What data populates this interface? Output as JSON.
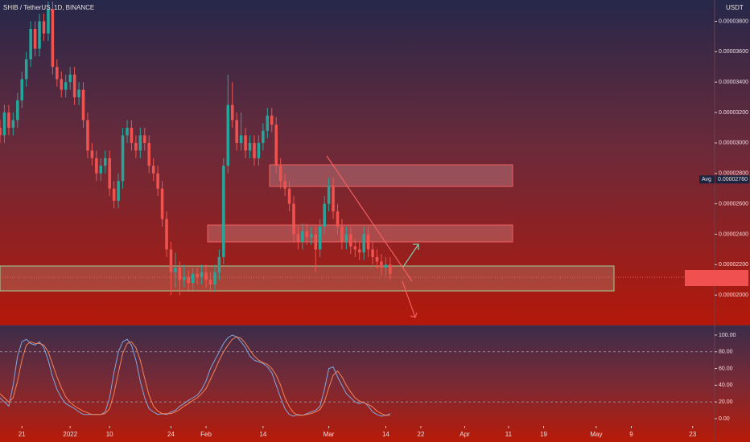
{
  "header": {
    "title": "SHIB / TetherUS, 1D, BINANCE",
    "currency": "USDT"
  },
  "chart_data": [
    {
      "type": "candlestick",
      "x": [
        -5,
        -4,
        -3,
        -2,
        -1,
        0,
        1,
        2,
        3,
        4,
        5,
        6,
        7,
        8,
        9,
        10,
        11,
        12,
        13,
        14,
        15,
        16,
        17,
        18,
        19,
        20,
        21,
        22,
        23,
        24,
        25,
        26,
        27,
        28,
        29,
        30,
        31,
        32,
        33,
        34,
        35,
        36,
        37,
        38,
        39,
        40,
        41,
        42,
        43,
        44,
        45,
        46,
        47,
        48,
        49,
        50,
        51,
        52,
        53,
        54,
        55,
        56,
        57,
        58,
        59,
        60,
        61,
        62,
        63,
        64,
        65,
        66,
        67,
        68,
        69,
        70,
        71,
        72,
        73,
        74,
        75,
        76,
        77,
        78,
        79,
        80,
        81,
        82,
        83,
        84
      ],
      "open": [
        3.1e-05,
        3.05e-05,
        3.2e-05,
        3.1e-05,
        3.15e-05,
        3.28e-05,
        3.42e-05,
        3.55e-05,
        3.75e-05,
        3.62e-05,
        3.8e-05,
        3.72e-05,
        3.88e-05,
        3.5e-05,
        3.42e-05,
        3.35e-05,
        3.4e-05,
        3.45e-05,
        3.3e-05,
        3.35e-05,
        3.15e-05,
        2.95e-05,
        2.9e-05,
        2.8e-05,
        2.85e-05,
        2.9e-05,
        2.7e-05,
        2.62e-05,
        2.75e-05,
        3.05e-05,
        3.1e-05,
        3e-05,
        2.95e-05,
        3.05e-05,
        3e-05,
        2.85e-05,
        2.8e-05,
        2.7e-05,
        2.5e-05,
        2.3e-05,
        2.15e-05,
        2.18e-05,
        2.1e-05,
        2.12e-05,
        2.08e-05,
        2.14e-05,
        2.12e-05,
        2.15e-05,
        2.1e-05,
        2.07e-05,
        2.15e-05,
        2.25e-05,
        2.85e-05,
        3.25e-05,
        3.15e-05,
        3e-05,
        3.05e-05,
        2.95e-05,
        3e-05,
        2.9e-05,
        3e-05,
        3.08e-05,
        3.18e-05,
        3.12e-05,
        2.85e-05,
        2.75e-05,
        2.7e-05,
        2.6e-05,
        2.4e-05,
        2.35e-05,
        2.42e-05,
        2.38e-05,
        2.4e-05,
        2.3e-05,
        2.45e-05,
        2.6e-05,
        2.72e-05,
        2.55e-05,
        2.45e-05,
        2.35e-05,
        2.4e-05,
        2.32e-05,
        2.3e-05,
        2.28e-05,
        2.4e-05,
        2.3e-05,
        2.25e-05,
        2.22e-05,
        2.18e-05,
        2.2e-05
      ],
      "high": [
        3.15e-05,
        3.25e-05,
        3.25e-05,
        3.2e-05,
        3.33e-05,
        3.47e-05,
        3.6e-05,
        3.8e-05,
        3.8e-05,
        3.85e-05,
        3.85e-05,
        3.93e-05,
        3.93e-05,
        3.55e-05,
        3.47e-05,
        3.45e-05,
        3.5e-05,
        3.5e-05,
        3.4e-05,
        3.4e-05,
        3.2e-05,
        3e-05,
        2.95e-05,
        2.9e-05,
        2.95e-05,
        2.95e-05,
        2.75e-05,
        2.8e-05,
        3.1e-05,
        3.15e-05,
        3.15e-05,
        3.05e-05,
        3.1e-05,
        3.1e-05,
        3.05e-05,
        2.9e-05,
        2.85e-05,
        2.75e-05,
        2.55e-05,
        2.35e-05,
        2.28e-05,
        2.22e-05,
        2.2e-05,
        2.16e-05,
        2.18e-05,
        2.18e-05,
        2.2e-05,
        2.2e-05,
        2.15e-05,
        2.2e-05,
        2.3e-05,
        2.9e-05,
        3.45e-05,
        3.4e-05,
        3.2e-05,
        3.2e-05,
        3.1e-05,
        3.05e-05,
        3.05e-05,
        3.05e-05,
        3.13e-05,
        3.23e-05,
        3.23e-05,
        3.17e-05,
        2.9e-05,
        2.8e-05,
        2.75e-05,
        2.65e-05,
        2.45e-05,
        2.47e-05,
        2.47e-05,
        2.45e-05,
        2.45e-05,
        2.5e-05,
        2.65e-05,
        2.77e-05,
        2.77e-05,
        2.6e-05,
        2.5e-05,
        2.45e-05,
        2.45e-05,
        2.37e-05,
        2.35e-05,
        2.45e-05,
        2.45e-05,
        2.35e-05,
        2.3e-05,
        2.27e-05,
        2.25e-05,
        2.25e-05
      ],
      "low": [
        3e-05,
        3e-05,
        3.05e-05,
        3.05e-05,
        3.1e-05,
        3.23e-05,
        3.37e-05,
        3.5e-05,
        3.57e-05,
        3.57e-05,
        3.67e-05,
        3.67e-05,
        3.45e-05,
        3.37e-05,
        3.3e-05,
        3.3e-05,
        3.35e-05,
        3.25e-05,
        3.25e-05,
        3.1e-05,
        2.9e-05,
        2.85e-05,
        2.75e-05,
        2.75e-05,
        2.8e-05,
        2.65e-05,
        2.57e-05,
        2.57e-05,
        2.7e-05,
        3e-05,
        2.95e-05,
        2.9e-05,
        2.9e-05,
        2.95e-05,
        2.8e-05,
        2.75e-05,
        2.65e-05,
        2.45e-05,
        2.25e-05,
        2e-05,
        2.05e-05,
        2e-05,
        2.05e-05,
        2.03e-05,
        2.03e-05,
        2.07e-05,
        2.07e-05,
        2.05e-05,
        2.02e-05,
        2.02e-05,
        2.1e-05,
        2.2e-05,
        2.8e-05,
        3.1e-05,
        2.95e-05,
        2.95e-05,
        2.9e-05,
        2.9e-05,
        2.85e-05,
        2.85e-05,
        2.95e-05,
        3.03e-05,
        3.07e-05,
        2.8e-05,
        2.7e-05,
        2.65e-05,
        2.55e-05,
        2.35e-05,
        2.3e-05,
        2.3e-05,
        2.33e-05,
        2.33e-05,
        2.15e-05,
        2.25e-05,
        2.4e-05,
        2.55e-05,
        2.5e-05,
        2.4e-05,
        2.3e-05,
        2.3e-05,
        2.27e-05,
        2.25e-05,
        2.23e-05,
        2.23e-05,
        2.25e-05,
        2.2e-05,
        2.17e-05,
        2.13e-05,
        2.13e-05,
        2.1e-05
      ],
      "close": [
        3.05e-05,
        3.2e-05,
        3.1e-05,
        3.15e-05,
        3.28e-05,
        3.42e-05,
        3.55e-05,
        3.75e-05,
        3.62e-05,
        3.8e-05,
        3.72e-05,
        3.88e-05,
        3.5e-05,
        3.42e-05,
        3.35e-05,
        3.4e-05,
        3.45e-05,
        3.3e-05,
        3.35e-05,
        3.15e-05,
        2.95e-05,
        2.9e-05,
        2.8e-05,
        2.85e-05,
        2.9e-05,
        2.7e-05,
        2.62e-05,
        2.75e-05,
        3.05e-05,
        3.1e-05,
        3e-05,
        2.95e-05,
        3.05e-05,
        3e-05,
        2.85e-05,
        2.8e-05,
        2.7e-05,
        2.5e-05,
        2.3e-05,
        2.15e-05,
        2.18e-05,
        2.1e-05,
        2.12e-05,
        2.08e-05,
        2.14e-05,
        2.12e-05,
        2.15e-05,
        2.1e-05,
        2.07e-05,
        2.15e-05,
        2.25e-05,
        2.85e-05,
        3.25e-05,
        3.15e-05,
        3e-05,
        3.05e-05,
        2.95e-05,
        3e-05,
        2.9e-05,
        3e-05,
        3.08e-05,
        3.18e-05,
        3.12e-05,
        2.85e-05,
        2.75e-05,
        2.7e-05,
        2.6e-05,
        2.4e-05,
        2.35e-05,
        2.42e-05,
        2.38e-05,
        2.4e-05,
        2.3e-05,
        2.45e-05,
        2.6e-05,
        2.72e-05,
        2.55e-05,
        2.45e-05,
        2.35e-05,
        2.4e-05,
        2.32e-05,
        2.3e-05,
        2.28e-05,
        2.4e-05,
        2.3e-05,
        2.25e-05,
        2.22e-05,
        2.18e-05,
        2.2e-05,
        2.14e-05
      ],
      "up_color": "#26a69a",
      "down_color": "#ef5350",
      "xlim": [
        -5,
        158
      ],
      "ylim": [
        1.8e-05,
        3.94e-05
      ],
      "yticks": [
        {
          "value": 2e-05,
          "label": "0.00002000"
        },
        {
          "value": 2.2e-05,
          "label": "0.00002200"
        },
        {
          "value": 2.4e-05,
          "label": "0.00002400"
        },
        {
          "value": 2.6e-05,
          "label": "0.00002600"
        },
        {
          "value": 2.8e-05,
          "label": "0.00002800"
        },
        {
          "value": 3e-05,
          "label": "0.00003000"
        },
        {
          "value": 3.2e-05,
          "label": "0.00003200"
        },
        {
          "value": 3.4e-05,
          "label": "0.00003400"
        },
        {
          "value": 3.6e-05,
          "label": "0.00003600"
        },
        {
          "value": 3.8e-05,
          "label": "0.00003800"
        }
      ],
      "avg": {
        "name": "Avg",
        "value": 2.76e-05,
        "label": "0.00002760"
      }
    },
    {
      "type": "line",
      "x": [
        -5,
        -4,
        -3,
        -2,
        -1,
        0,
        1,
        2,
        3,
        4,
        5,
        6,
        7,
        8,
        9,
        10,
        11,
        12,
        13,
        14,
        15,
        16,
        17,
        18,
        19,
        20,
        21,
        22,
        23,
        24,
        25,
        26,
        27,
        28,
        29,
        30,
        31,
        32,
        33,
        34,
        35,
        36,
        37,
        38,
        39,
        40,
        41,
        42,
        43,
        44,
        45,
        46,
        47,
        48,
        49,
        50,
        51,
        52,
        53,
        54,
        55,
        56,
        57,
        58,
        59,
        60,
        61,
        62,
        63,
        64,
        65,
        66,
        67,
        68,
        69,
        70,
        71,
        72,
        73,
        74,
        75,
        76,
        77,
        78,
        79,
        80,
        81,
        82,
        83,
        84
      ],
      "series": [
        {
          "color": "#7fa7e0",
          "values": [
            25,
            20,
            15,
            40,
            75,
            92,
            95,
            90,
            88,
            92,
            85,
            70,
            50,
            35,
            25,
            18,
            15,
            12,
            8,
            5,
            5,
            5,
            5,
            5,
            8,
            25,
            55,
            80,
            92,
            95,
            88,
            70,
            45,
            25,
            12,
            8,
            5,
            6,
            5,
            8,
            10,
            15,
            18,
            22,
            25,
            28,
            35,
            45,
            60,
            70,
            80,
            90,
            97,
            100,
            98,
            92,
            85,
            75,
            70,
            68,
            66,
            62,
            55,
            40,
            25,
            12,
            5,
            3,
            5,
            4,
            6,
            8,
            10,
            15,
            35,
            60,
            62,
            50,
            40,
            30,
            25,
            20,
            18,
            20,
            15,
            8,
            5,
            3,
            4,
            6
          ]
        },
        {
          "color": "#f0845a",
          "values": [
            30,
            25,
            20,
            25,
            45,
            70,
            88,
            92,
            90,
            90,
            88,
            80,
            65,
            50,
            37,
            26,
            20,
            15,
            12,
            9,
            7,
            5,
            5,
            5,
            6,
            12,
            30,
            55,
            78,
            90,
            92,
            85,
            70,
            48,
            28,
            15,
            9,
            6,
            6,
            6,
            8,
            11,
            15,
            18,
            22,
            25,
            30,
            36,
            47,
            58,
            70,
            80,
            88,
            95,
            98,
            96,
            90,
            82,
            75,
            70,
            67,
            65,
            60,
            52,
            40,
            25,
            14,
            7,
            4,
            4,
            5,
            6,
            8,
            11,
            20,
            37,
            52,
            57,
            50,
            40,
            32,
            25,
            21,
            19,
            17,
            14,
            9,
            6,
            4,
            4
          ]
        }
      ],
      "bands": [
        80,
        20
      ],
      "xlim": [
        -5,
        158
      ],
      "ylim": [
        -8.7,
        111.5
      ],
      "yticks": [
        {
          "value": 0,
          "label": "0.00"
        },
        {
          "value": 20,
          "label": "20.00"
        },
        {
          "value": 40,
          "label": "40.00"
        },
        {
          "value": 60,
          "label": "60.00"
        },
        {
          "value": 80,
          "label": "80.00"
        },
        {
          "value": 100,
          "label": "100.00"
        }
      ],
      "xticks": [
        {
          "value": 0,
          "label": "21"
        },
        {
          "value": 11,
          "label": "2022"
        },
        {
          "value": 20,
          "label": "10"
        },
        {
          "value": 34,
          "label": "24"
        },
        {
          "value": 42,
          "label": "Feb"
        },
        {
          "value": 55,
          "label": "14"
        },
        {
          "value": 70,
          "label": "Mar"
        },
        {
          "value": 83,
          "label": "14"
        },
        {
          "value": 91,
          "label": "22"
        },
        {
          "value": 101,
          "label": "Apr"
        },
        {
          "value": 111,
          "label": "11"
        },
        {
          "value": 119,
          "label": "19"
        },
        {
          "value": 131,
          "label": "May"
        },
        {
          "value": 139,
          "label": "9"
        },
        {
          "value": 153,
          "label": "23"
        }
      ]
    }
  ]
}
